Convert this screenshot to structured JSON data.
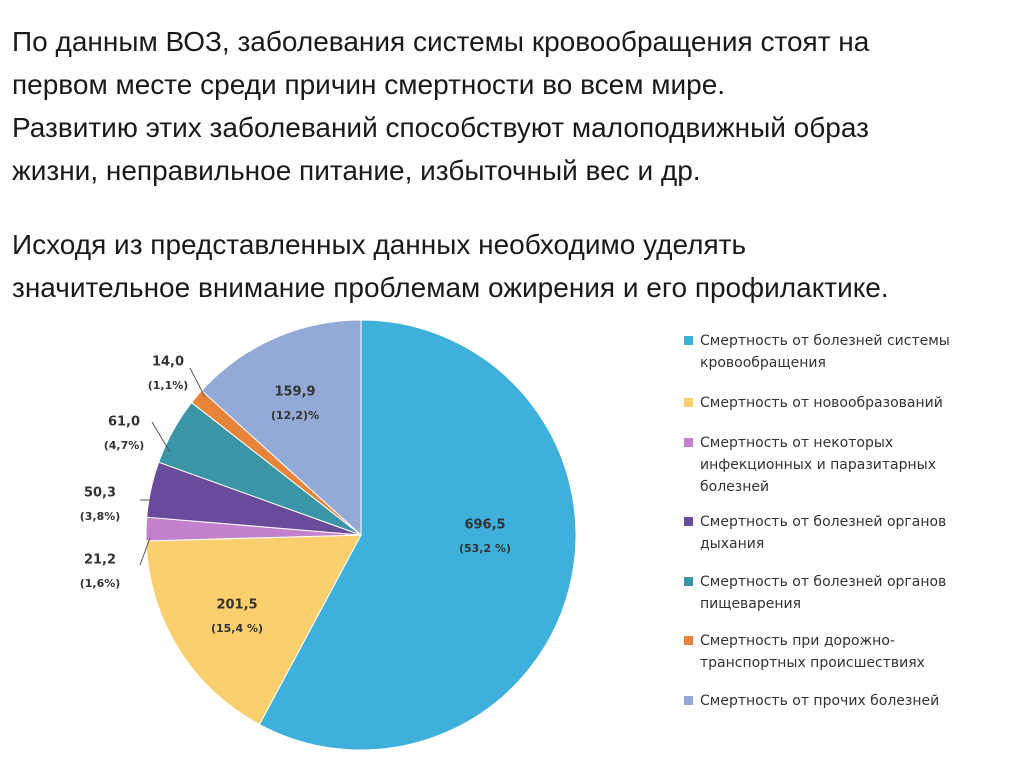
{
  "paragraphs": [
    [
      "По данным ВОЗ, заболевания системы кровообращения стоят на",
      "первом месте среди причин смертности во всем мире.",
      "Развитию этих заболеваний способствуют малоподвижный образ",
      "жизни, неправильное питание, избыточный вес и др."
    ],
    [
      "Исходя из представленных данных необходимо уделять",
      "значительное внимание проблемам ожирения и его профилактике."
    ]
  ],
  "chart_data": {
    "type": "pie",
    "categories": [
      "Смертность от болезней системы кровообращения",
      "Смертность от новообразований",
      "Смертность от некоторых инфекционных и паразитарных болезней",
      "Смертность от болезней органов дыхания",
      "Смертность от болезней органов пищеварения",
      "Смертность при дорожно-транспортных происшествиях",
      "Смертность от прочих болезней"
    ],
    "values": [
      696.5,
      201.5,
      21.2,
      50.3,
      61.0,
      14.0,
      159.9
    ],
    "value_labels": [
      "696,5",
      "201,5",
      "21,2",
      "50,3",
      "61,0",
      "14,0",
      "159,9"
    ],
    "percents": [
      53.2,
      15.4,
      1.6,
      3.8,
      4.7,
      1.1,
      12.2
    ],
    "percent_labels": [
      "(53,2 %)",
      "(15,4 %)",
      "(1,6%)",
      "(3,8%)",
      "(4,7%)",
      "(1,1%)",
      "(12,2)%"
    ],
    "colors": [
      "#3fb0dc",
      "#fbcf6e",
      "#c380cc",
      "#6a4a9a",
      "#3a95a6",
      "#e8843a",
      "#93aad6"
    ]
  }
}
